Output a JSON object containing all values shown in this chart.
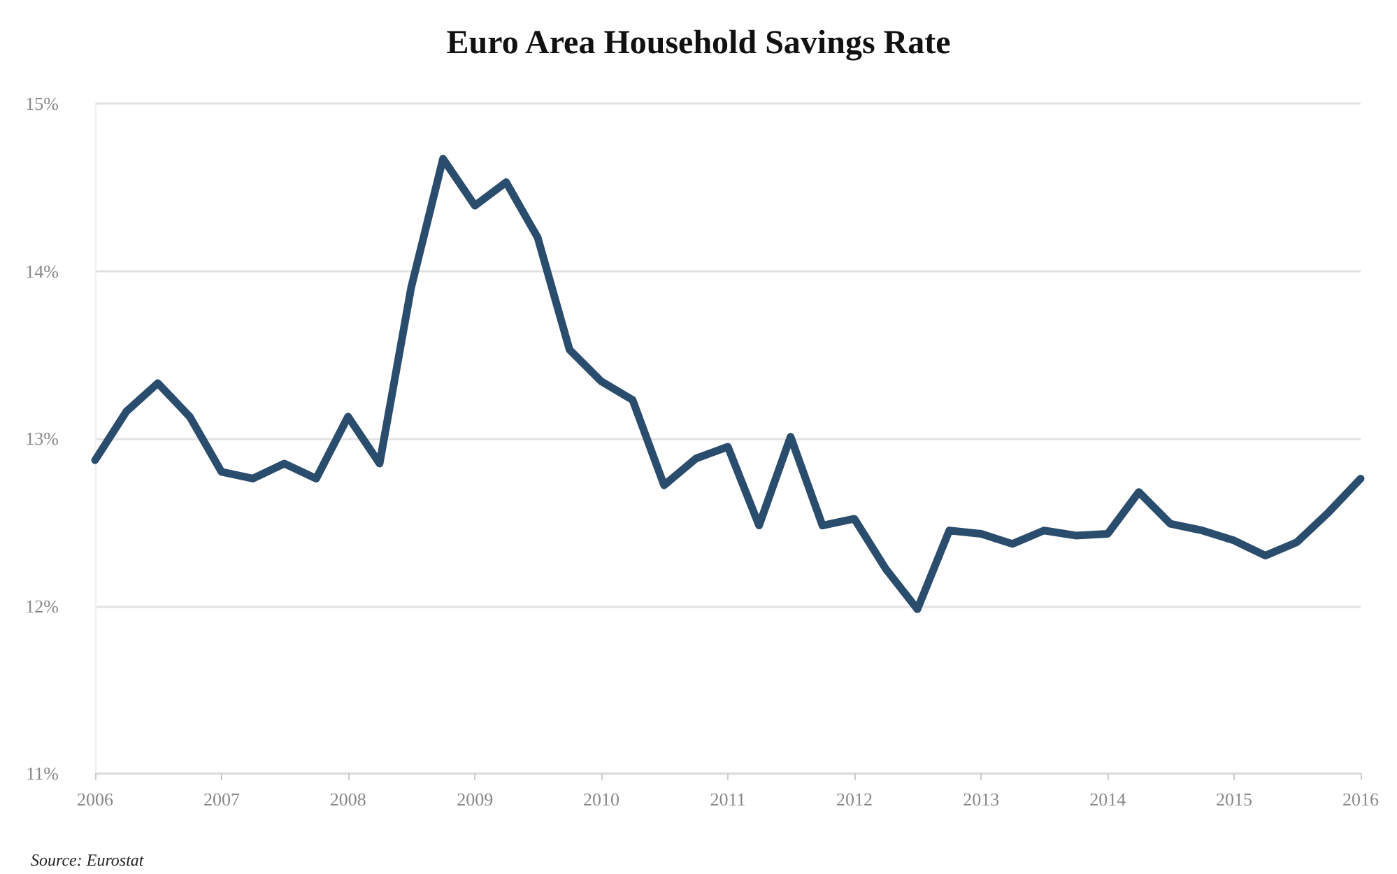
{
  "chart_data": {
    "type": "line",
    "title": "Euro Area Household Savings Rate",
    "annotations": [
      "Source: Eurostat"
    ],
    "x": [
      "2006-01",
      "2006-04",
      "2006-07",
      "2006-10",
      "2007-01",
      "2007-04",
      "2007-07",
      "2007-10",
      "2008-01",
      "2008-04",
      "2008-07",
      "2008-10",
      "2009-01",
      "2009-04",
      "2009-07",
      "2009-10",
      "2010-01",
      "2010-04",
      "2010-07",
      "2010-10",
      "2011-01",
      "2011-04",
      "2011-07",
      "2011-10",
      "2012-01",
      "2012-04",
      "2012-07",
      "2012-10",
      "2013-01",
      "2013-04",
      "2013-07",
      "2013-10",
      "2014-01",
      "2014-04",
      "2014-07",
      "2014-10",
      "2015-01",
      "2015-04",
      "2015-07",
      "2015-10",
      "2016-01"
    ],
    "series": [
      {
        "color": "#2a4d6e",
        "values": [
          12.87,
          13.16,
          13.33,
          13.13,
          12.8,
          12.76,
          12.85,
          12.76,
          13.13,
          12.85,
          13.9,
          14.67,
          14.39,
          14.53,
          14.2,
          13.53,
          13.34,
          13.23,
          12.72,
          12.88,
          12.95,
          12.48,
          13.01,
          12.48,
          12.52,
          12.22,
          11.98,
          12.45,
          12.43,
          12.37,
          12.45,
          12.42,
          12.43,
          12.68,
          12.49,
          12.45,
          12.39,
          12.3,
          12.38,
          12.56,
          12.76
        ]
      }
    ],
    "xlim": [
      "2006",
      "2016"
    ],
    "xticks": [
      {
        "value": "2006",
        "label": "2006"
      },
      {
        "value": "2007",
        "label": "2007"
      },
      {
        "value": "2008",
        "label": "2008"
      },
      {
        "value": "2009",
        "label": "2009"
      },
      {
        "value": "2010",
        "label": "2010"
      },
      {
        "value": "2011",
        "label": "2011"
      },
      {
        "value": "2012",
        "label": "2012"
      },
      {
        "value": "2013",
        "label": "2013"
      },
      {
        "value": "2014",
        "label": "2014"
      },
      {
        "value": "2015",
        "label": "2015"
      },
      {
        "value": "2016",
        "label": "2016"
      }
    ],
    "ylim": [
      11,
      15
    ],
    "yticks": [
      {
        "value": 11,
        "label": "11%"
      },
      {
        "value": 12,
        "label": "12%"
      },
      {
        "value": 13,
        "label": "13%"
      },
      {
        "value": 14,
        "label": "14%"
      },
      {
        "value": 15,
        "label": "15%"
      }
    ],
    "grid": "y",
    "marker": "none",
    "line_style": "solid"
  }
}
